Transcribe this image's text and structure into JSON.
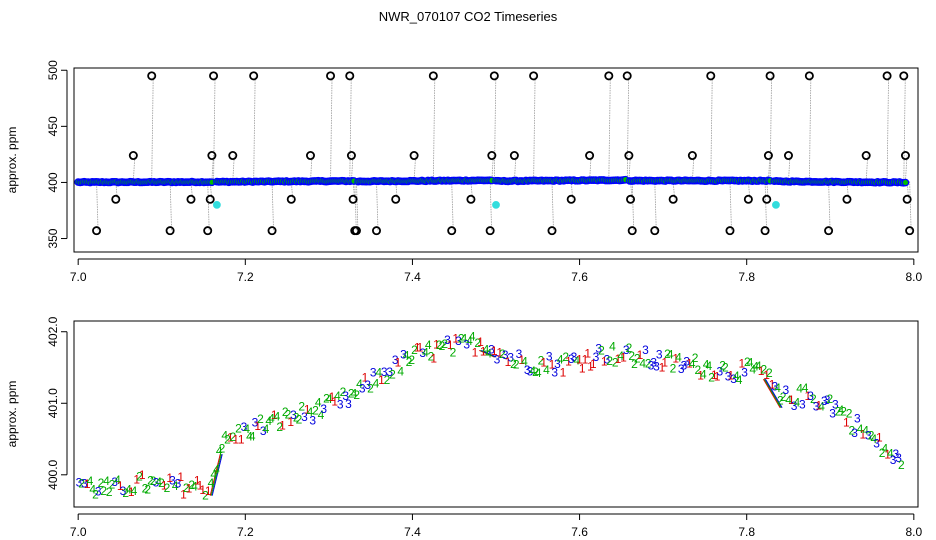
{
  "figure": {
    "title": "NWR_070107  CO2 Timeseries"
  },
  "chart_data": [
    {
      "type": "scatter",
      "panel": "top",
      "title": "NWR_070107  CO2 Timeseries",
      "xlabel": "",
      "ylabel": "approx. ppm",
      "xlim": [
        6.995,
        8.005
      ],
      "ylim": [
        338,
        502
      ],
      "xticks": [
        7.0,
        7.2,
        7.4,
        7.6,
        7.8,
        8.0
      ],
      "xtick_labels": [
        "7.0",
        "7.2",
        "7.4",
        "7.6",
        "7.8",
        "8.0"
      ],
      "yticks": [
        350,
        400,
        450,
        500
      ],
      "ytick_labels": [
        "350",
        "400",
        "450",
        "500"
      ],
      "colors": {
        "baseline": "#0000ff",
        "baseline_fill": "#00bb00",
        "outlier": "#000000",
        "flagged": "#33dddd",
        "connector": "#999999"
      },
      "segments": [
        {
          "x0": 7.0,
          "x1": 7.16,
          "y0": 400.2,
          "y1": 400.4
        },
        {
          "x0": 7.166,
          "x1": 7.33,
          "y0": 400.5,
          "y1": 401.3
        },
        {
          "x0": 7.335,
          "x1": 7.495,
          "y0": 400.9,
          "y1": 401.9
        },
        {
          "x0": 7.5,
          "x1": 7.655,
          "y0": 401.2,
          "y1": 402.1
        },
        {
          "x0": 7.66,
          "x1": 7.828,
          "y0": 401.6,
          "y1": 401.5
        },
        {
          "x0": 7.833,
          "x1": 7.99,
          "y0": 401.0,
          "y1": 400.0
        }
      ],
      "outliers": [
        {
          "x": 7.022,
          "y": 357
        },
        {
          "x": 7.045,
          "y": 385
        },
        {
          "x": 7.066,
          "y": 424
        },
        {
          "x": 7.088,
          "y": 495
        },
        {
          "x": 7.11,
          "y": 357
        },
        {
          "x": 7.135,
          "y": 385
        },
        {
          "x": 7.155,
          "y": 357
        },
        {
          "x": 7.158,
          "y": 385
        },
        {
          "x": 7.16,
          "y": 424
        },
        {
          "x": 7.162,
          "y": 495
        },
        {
          "x": 7.185,
          "y": 424
        },
        {
          "x": 7.21,
          "y": 495
        },
        {
          "x": 7.232,
          "y": 357
        },
        {
          "x": 7.255,
          "y": 385
        },
        {
          "x": 7.278,
          "y": 424
        },
        {
          "x": 7.302,
          "y": 495
        },
        {
          "x": 7.325,
          "y": 495
        },
        {
          "x": 7.327,
          "y": 424
        },
        {
          "x": 7.329,
          "y": 385
        },
        {
          "x": 7.331,
          "y": 357
        },
        {
          "x": 7.333,
          "y": 357
        },
        {
          "x": 7.357,
          "y": 357
        },
        {
          "x": 7.38,
          "y": 385
        },
        {
          "x": 7.402,
          "y": 424
        },
        {
          "x": 7.425,
          "y": 495
        },
        {
          "x": 7.447,
          "y": 357
        },
        {
          "x": 7.47,
          "y": 385
        },
        {
          "x": 7.493,
          "y": 357
        },
        {
          "x": 7.495,
          "y": 424
        },
        {
          "x": 7.498,
          "y": 495
        },
        {
          "x": 7.522,
          "y": 424
        },
        {
          "x": 7.545,
          "y": 495
        },
        {
          "x": 7.567,
          "y": 357
        },
        {
          "x": 7.59,
          "y": 385
        },
        {
          "x": 7.612,
          "y": 424
        },
        {
          "x": 7.635,
          "y": 495
        },
        {
          "x": 7.657,
          "y": 495
        },
        {
          "x": 7.659,
          "y": 424
        },
        {
          "x": 7.661,
          "y": 385
        },
        {
          "x": 7.663,
          "y": 357
        },
        {
          "x": 7.69,
          "y": 357
        },
        {
          "x": 7.712,
          "y": 385
        },
        {
          "x": 7.735,
          "y": 424
        },
        {
          "x": 7.757,
          "y": 495
        },
        {
          "x": 7.78,
          "y": 357
        },
        {
          "x": 7.802,
          "y": 385
        },
        {
          "x": 7.822,
          "y": 357
        },
        {
          "x": 7.824,
          "y": 385
        },
        {
          "x": 7.826,
          "y": 424
        },
        {
          "x": 7.828,
          "y": 495
        },
        {
          "x": 7.85,
          "y": 424
        },
        {
          "x": 7.875,
          "y": 495
        },
        {
          "x": 7.898,
          "y": 357
        },
        {
          "x": 7.92,
          "y": 385
        },
        {
          "x": 7.943,
          "y": 424
        },
        {
          "x": 7.968,
          "y": 495
        },
        {
          "x": 7.988,
          "y": 495
        },
        {
          "x": 7.99,
          "y": 424
        },
        {
          "x": 7.992,
          "y": 385
        },
        {
          "x": 7.995,
          "y": 357
        }
      ],
      "flagged": [
        {
          "x": 7.166,
          "y": 380
        },
        {
          "x": 7.5,
          "y": 380
        },
        {
          "x": 7.835,
          "y": 380
        }
      ]
    },
    {
      "type": "scatter",
      "panel": "bottom",
      "xlabel": "",
      "ylabel": "approx. ppm",
      "xlim": [
        6.995,
        8.005
      ],
      "ylim": [
        399.55,
        402.15
      ],
      "xticks": [
        7.0,
        7.2,
        7.4,
        7.6,
        7.8,
        8.0
      ],
      "xtick_labels": [
        "7.0",
        "7.2",
        "7.4",
        "7.6",
        "7.8",
        "8.0"
      ],
      "yticks": [
        400.0,
        401.0,
        402.0
      ],
      "ytick_labels": [
        "400.0",
        "401.0",
        "402.0"
      ],
      "symbols": [
        "1",
        "2",
        "3",
        "4"
      ],
      "symbol_colors": [
        "#dd0000",
        "#00aa00",
        "#0000dd",
        "#00aa00"
      ],
      "trend": [
        {
          "x": 7.0,
          "y": 399.9
        },
        {
          "x": 7.02,
          "y": 399.82
        },
        {
          "x": 7.04,
          "y": 399.78
        },
        {
          "x": 7.06,
          "y": 399.85
        },
        {
          "x": 7.08,
          "y": 399.88
        },
        {
          "x": 7.1,
          "y": 399.82
        },
        {
          "x": 7.12,
          "y": 399.86
        },
        {
          "x": 7.14,
          "y": 399.83
        },
        {
          "x": 7.158,
          "y": 399.82
        },
        {
          "x": 7.17,
          "y": 400.4
        },
        {
          "x": 7.19,
          "y": 400.55
        },
        {
          "x": 7.21,
          "y": 400.65
        },
        {
          "x": 7.24,
          "y": 400.75
        },
        {
          "x": 7.27,
          "y": 400.85
        },
        {
          "x": 7.3,
          "y": 400.95
        },
        {
          "x": 7.33,
          "y": 401.1
        },
        {
          "x": 7.35,
          "y": 401.3
        },
        {
          "x": 7.38,
          "y": 401.5
        },
        {
          "x": 7.4,
          "y": 401.65
        },
        {
          "x": 7.43,
          "y": 401.75
        },
        {
          "x": 7.46,
          "y": 401.8
        },
        {
          "x": 7.48,
          "y": 401.85
        },
        {
          "x": 7.495,
          "y": 401.78
        },
        {
          "x": 7.52,
          "y": 401.6
        },
        {
          "x": 7.55,
          "y": 401.55
        },
        {
          "x": 7.58,
          "y": 401.55
        },
        {
          "x": 7.6,
          "y": 401.6
        },
        {
          "x": 7.63,
          "y": 401.7
        },
        {
          "x": 7.66,
          "y": 401.65
        },
        {
          "x": 7.69,
          "y": 401.6
        },
        {
          "x": 7.72,
          "y": 401.55
        },
        {
          "x": 7.75,
          "y": 401.5
        },
        {
          "x": 7.78,
          "y": 401.45
        },
        {
          "x": 7.8,
          "y": 401.45
        },
        {
          "x": 7.82,
          "y": 401.45
        },
        {
          "x": 7.84,
          "y": 401.05
        },
        {
          "x": 7.87,
          "y": 401.1
        },
        {
          "x": 7.9,
          "y": 401.0
        },
        {
          "x": 7.92,
          "y": 400.8
        },
        {
          "x": 7.94,
          "y": 400.6
        },
        {
          "x": 7.96,
          "y": 400.4
        },
        {
          "x": 7.975,
          "y": 400.25
        },
        {
          "x": 7.99,
          "y": 400.05
        }
      ]
    }
  ]
}
